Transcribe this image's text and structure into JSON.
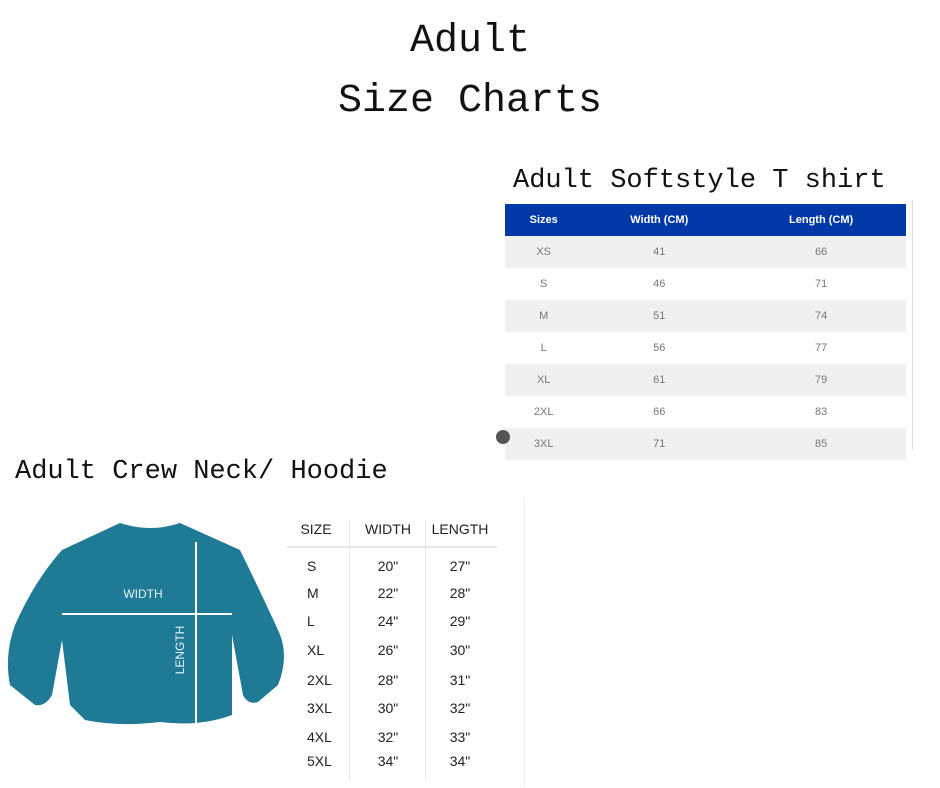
{
  "title": {
    "line1": "Adult",
    "line2": "Size Charts"
  },
  "softstyle": {
    "heading": "Adult Softstyle T shirt",
    "header_color": "#0038a8",
    "columns": [
      "Sizes",
      "Width (CM)",
      "Length (CM)"
    ],
    "rows": [
      [
        "XS",
        "41",
        "66"
      ],
      [
        "S",
        "46",
        "71"
      ],
      [
        "M",
        "51",
        "74"
      ],
      [
        "L",
        "56",
        "77"
      ],
      [
        "XL",
        "61",
        "79"
      ],
      [
        "2XL",
        "66",
        "83"
      ],
      [
        "3XL",
        "71",
        "85"
      ]
    ]
  },
  "crew": {
    "heading": "Adult Crew Neck/ Hoodie",
    "garment_color": "#1f7a95",
    "diagram_labels": {
      "width": "WIDTH",
      "length": "LENGTH"
    },
    "columns": [
      "SIZE",
      "WIDTH",
      "LENGTH"
    ],
    "rows": [
      [
        "S",
        "20\"",
        "27\""
      ],
      [
        "M",
        "22\"",
        "28\""
      ],
      [
        "L",
        "24\"",
        "29\""
      ],
      [
        "XL",
        "26\"",
        "30\""
      ],
      [
        "2XL",
        "28\"",
        "31\""
      ],
      [
        "3XL",
        "30\"",
        "32\""
      ],
      [
        "4XL",
        "32\"",
        "33\""
      ],
      [
        "5XL",
        "34\"",
        "34\""
      ]
    ]
  }
}
